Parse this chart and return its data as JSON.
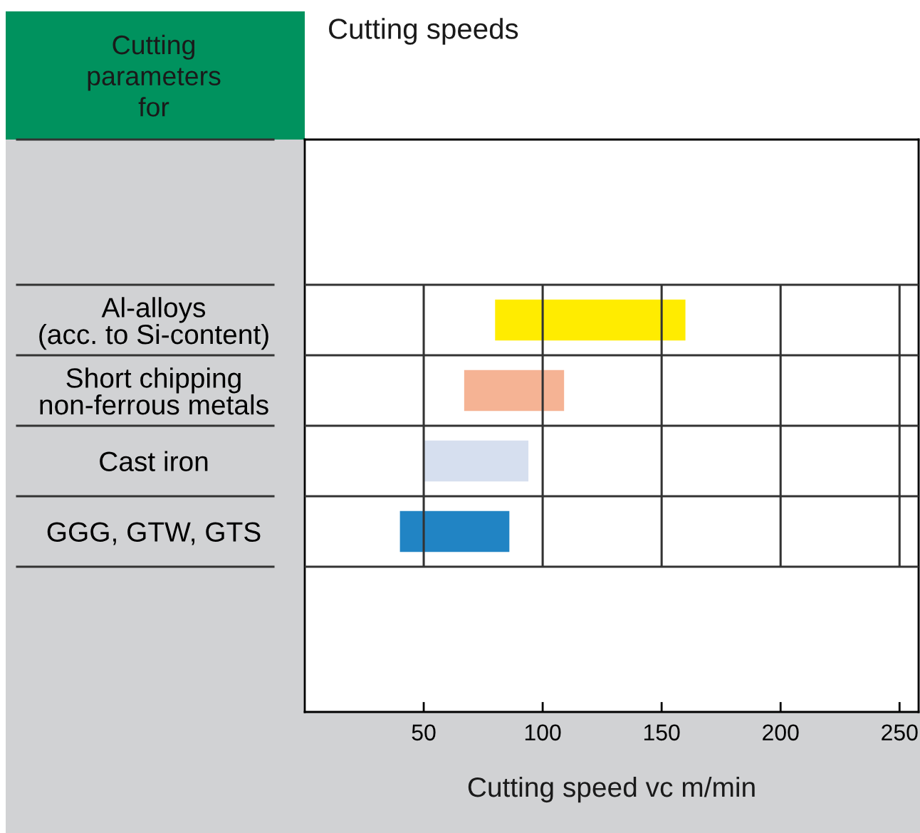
{
  "chart_data": {
    "type": "bar",
    "orientation": "horizontal",
    "title": "Cutting speeds",
    "xlabel": "Cutting speed vc m/min",
    "annotations": [
      "Cutting\nparameters\nfor"
    ],
    "categories": [
      "Al-alloys\n(acc. to Si-content)",
      "Short chipping\nnon-ferrous metals",
      "Cast iron",
      "GGG, GTW, GTS"
    ],
    "base": [
      80,
      67,
      50,
      40
    ],
    "values": [
      80,
      42,
      44,
      46
    ],
    "colors": [
      "#ffec00",
      "#f5b394",
      "#d6dfef",
      "#2184c4"
    ],
    "xlim": [
      0,
      258
    ],
    "xticks": [
      50,
      100,
      150,
      200,
      250
    ],
    "grid": true
  }
}
